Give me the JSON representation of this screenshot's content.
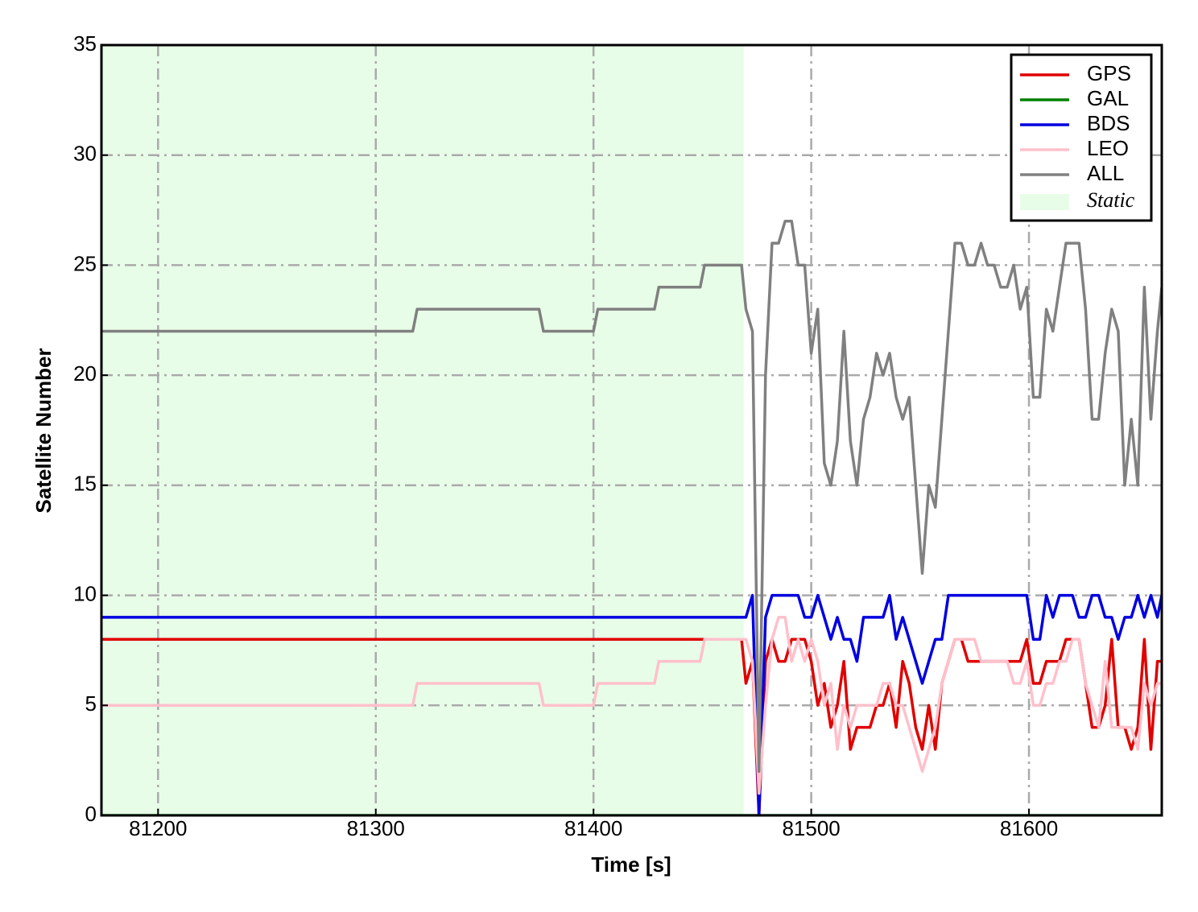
{
  "chart_data": {
    "type": "line",
    "xlabel": "Time [s]",
    "ylabel": "Satellite Number",
    "xlim": [
      81174,
      81661
    ],
    "ylim": [
      0,
      35
    ],
    "xticks": [
      81200,
      81300,
      81400,
      81500,
      81600
    ],
    "yticks": [
      0,
      5,
      10,
      15,
      20,
      25,
      30,
      35
    ],
    "grid": true,
    "legend": "upper right",
    "shaded_region": {
      "name": "Static",
      "xrange": [
        81174,
        81469
      ],
      "color": "#e8fde8"
    },
    "x": [
      81174,
      81317,
      81319,
      81375,
      81377,
      81400,
      81402,
      81428,
      81430,
      81449,
      81451,
      81468,
      81470,
      81473,
      81476,
      81479,
      81482,
      81485,
      81488,
      81491,
      81494,
      81497,
      81500,
      81503,
      81506,
      81509,
      81512,
      81515,
      81518,
      81521,
      81524,
      81527,
      81530,
      81533,
      81536,
      81539,
      81542,
      81545,
      81548,
      81551,
      81554,
      81557,
      81560,
      81563,
      81566,
      81569,
      81572,
      81575,
      81578,
      81581,
      81584,
      81587,
      81590,
      81593,
      81596,
      81599,
      81602,
      81605,
      81608,
      81611,
      81614,
      81617,
      81620,
      81623,
      81626,
      81629,
      81632,
      81635,
      81638,
      81641,
      81644,
      81647,
      81650,
      81653,
      81656,
      81659,
      81661
    ],
    "series": [
      {
        "name": "GPS",
        "color": "#e00000",
        "values": [
          8,
          8,
          8,
          8,
          8,
          8,
          8,
          8,
          8,
          8,
          8,
          8,
          6,
          7,
          0,
          7,
          8,
          7,
          7,
          8,
          8,
          8,
          7,
          5,
          6,
          4,
          5,
          7,
          3,
          4,
          4,
          4,
          5,
          5,
          6,
          4,
          7,
          6,
          4,
          3,
          5,
          3,
          6,
          7,
          8,
          8,
          7,
          7,
          7,
          7,
          7,
          7,
          7,
          7,
          7,
          8,
          6,
          6,
          7,
          7,
          7,
          8,
          8,
          8,
          6,
          4,
          4,
          5,
          8,
          4,
          4,
          3,
          4,
          8,
          3,
          7,
          7
        ]
      },
      {
        "name": "GAL",
        "color": "#008000",
        "values": [
          0,
          0,
          0,
          0,
          0,
          0,
          0,
          0,
          0,
          0,
          0,
          0,
          0,
          0,
          0,
          0,
          0,
          0,
          0,
          0,
          0,
          0,
          0,
          0,
          0,
          0,
          0,
          0,
          0,
          0,
          0,
          0,
          0,
          0,
          0,
          0,
          0,
          0,
          0,
          0,
          0,
          0,
          0,
          0,
          0,
          0,
          0,
          0,
          0,
          0,
          0,
          0,
          0,
          0,
          0,
          0,
          0,
          0,
          0,
          0,
          0,
          0,
          0,
          0,
          0,
          0,
          0,
          0,
          0,
          0,
          0,
          0,
          0,
          0,
          0,
          0,
          0
        ]
      },
      {
        "name": "BDS",
        "color": "#0000e0",
        "values": [
          9,
          9,
          9,
          9,
          9,
          9,
          9,
          9,
          9,
          9,
          9,
          9,
          9,
          10,
          0,
          9,
          10,
          10,
          10,
          10,
          10,
          9,
          9,
          10,
          9,
          8,
          9,
          8,
          8,
          7,
          9,
          9,
          9,
          9,
          10,
          8,
          9,
          8,
          7,
          6,
          7,
          8,
          8,
          10,
          10,
          10,
          10,
          10,
          10,
          10,
          10,
          10,
          10,
          10,
          10,
          10,
          8,
          8,
          10,
          9,
          10,
          10,
          10,
          9,
          9,
          10,
          10,
          9,
          9,
          8,
          9,
          9,
          10,
          9,
          10,
          9,
          10
        ]
      },
      {
        "name": "LEO",
        "color": "#ffc0cb",
        "values": [
          5,
          5,
          6,
          6,
          5,
          5,
          6,
          6,
          7,
          7,
          8,
          8,
          8,
          7,
          1,
          5,
          8,
          9,
          9,
          7,
          8,
          7,
          8,
          7,
          5,
          6,
          3,
          5,
          4,
          5,
          5,
          5,
          5,
          6,
          6,
          5,
          5,
          4,
          3,
          2,
          3,
          4,
          6,
          7,
          8,
          8,
          8,
          8,
          7,
          7,
          7,
          7,
          7,
          6,
          6,
          7,
          5,
          5,
          6,
          6,
          7,
          7,
          8,
          8,
          6,
          5,
          4,
          7,
          4,
          4,
          4,
          4,
          3,
          6,
          5,
          6,
          6
        ]
      },
      {
        "name": "ALL",
        "color": "#808080",
        "values": [
          22,
          22,
          23,
          23,
          22,
          22,
          23,
          23,
          24,
          24,
          25,
          25,
          23,
          22,
          2,
          20,
          26,
          26,
          27,
          27,
          25,
          25,
          21,
          23,
          16,
          15,
          17,
          22,
          17,
          15,
          18,
          19,
          21,
          20,
          21,
          19,
          18,
          19,
          15,
          11,
          15,
          14,
          18,
          22,
          26,
          26,
          25,
          25,
          26,
          25,
          25,
          24,
          24,
          25,
          23,
          24,
          19,
          19,
          23,
          22,
          24,
          26,
          26,
          26,
          23,
          18,
          18,
          21,
          23,
          22,
          15,
          18,
          15,
          24,
          18,
          22,
          24
        ]
      }
    ]
  }
}
